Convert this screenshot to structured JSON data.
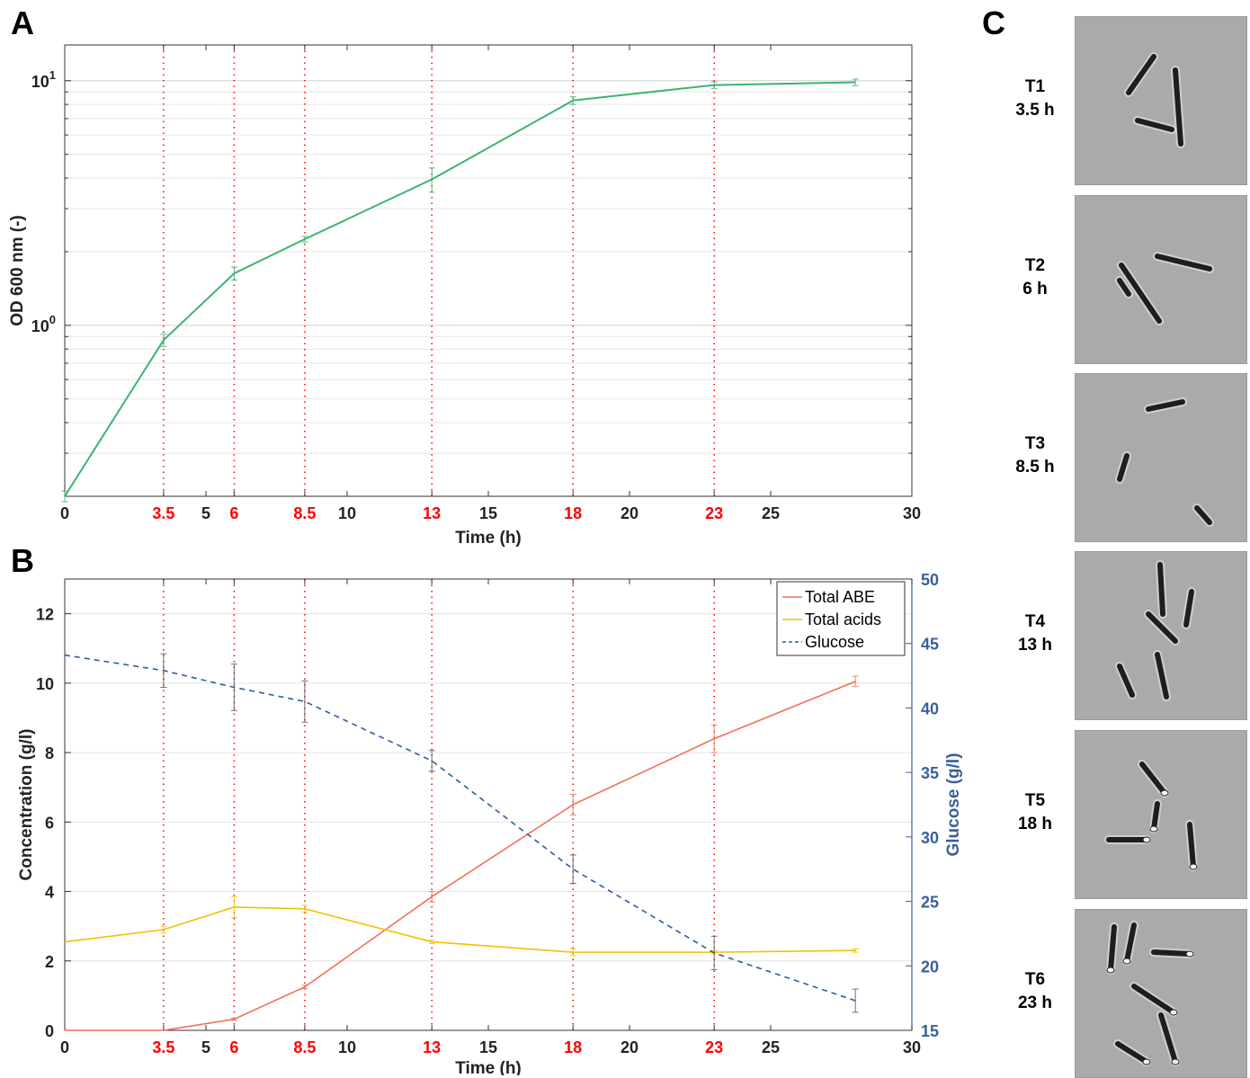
{
  "panels": {
    "a": "A",
    "b": "B",
    "c": "C"
  },
  "colors": {
    "od": "#3cb371",
    "abe": "#f07056",
    "acids": "#f2c000",
    "glucose": "#2e5c9e",
    "glucose_axis": "#3a5f9a",
    "event_lines": "#ff0000",
    "highlight_ticks": "#ff0000"
  },
  "x_ticks": {
    "values": [
      0,
      3.5,
      5,
      6,
      8.5,
      10,
      13,
      15,
      18,
      20,
      23,
      25,
      30
    ],
    "labels": [
      "0",
      "3.5",
      "5",
      "6",
      "8.5",
      "10",
      "13",
      "15",
      "18",
      "20",
      "23",
      "25",
      "30"
    ],
    "highlighted": [
      3.5,
      6,
      8.5,
      13,
      18,
      23
    ]
  },
  "chart_data": [
    {
      "id": "A",
      "type": "line",
      "xlabel": "Time (h)",
      "ylabel": "OD 600 nm (-)",
      "xlim": [
        0,
        30
      ],
      "ylim": [
        0.2,
        14
      ],
      "y_scale": "log",
      "y_ticks": [
        {
          "value": 1,
          "base": "10",
          "exp": "0"
        },
        {
          "value": 10,
          "base": "10",
          "exp": "1"
        }
      ],
      "grid": true,
      "vertical_markers": [
        3.5,
        6,
        8.5,
        13,
        18,
        23
      ],
      "series": [
        {
          "x": [
            0,
            3.5,
            6,
            8.5,
            13,
            18,
            23,
            28
          ],
          "y": [
            0.2,
            0.87,
            1.63,
            2.25,
            3.95,
            8.3,
            9.6,
            9.85
          ],
          "err": [
            0.01,
            0.05,
            0.1,
            0.06,
            0.45,
            0.3,
            0.3,
            0.3
          ],
          "color": "#3cb371"
        }
      ]
    },
    {
      "id": "B",
      "type": "line",
      "xlabel": "Time (h)",
      "ylabel": "Concentration (g/l)",
      "y2label": "Glucose (g/l)",
      "xlim": [
        0,
        30
      ],
      "ylim": [
        0,
        13
      ],
      "y2lim": [
        15,
        50
      ],
      "y_ticks": [
        0,
        2,
        4,
        6,
        8,
        10,
        12
      ],
      "y2_ticks": [
        15,
        20,
        25,
        30,
        35,
        40,
        45,
        50
      ],
      "grid": true,
      "legend_position": "top-right",
      "vertical_markers": [
        3.5,
        6,
        8.5,
        13,
        18,
        23
      ],
      "series": [
        {
          "name": "Total ABE",
          "axis": "left",
          "x": [
            0,
            3.5,
            6,
            8.5,
            13,
            18,
            23,
            28
          ],
          "y": [
            0,
            0,
            0.32,
            1.25,
            3.85,
            6.5,
            8.4,
            10.05
          ],
          "err": [
            0,
            0,
            0.03,
            0.05,
            0.15,
            0.3,
            0.4,
            0.15
          ],
          "color": "#f07056",
          "dash": "solid"
        },
        {
          "name": "Total acids",
          "axis": "left",
          "x": [
            0,
            3.5,
            6,
            8.5,
            13,
            18,
            23,
            28
          ],
          "y": [
            2.55,
            2.9,
            3.55,
            3.5,
            2.55,
            2.25,
            2.25,
            2.3
          ],
          "err": [
            0,
            0.1,
            0.3,
            0.1,
            0.05,
            0.1,
            0.05,
            0.05
          ],
          "color": "#f2c000",
          "dash": "solid"
        },
        {
          "name": "Glucose",
          "axis": "right",
          "x": [
            0,
            3.5,
            6,
            8.5,
            13,
            18,
            23,
            28
          ],
          "y": [
            44.1,
            42.9,
            41.6,
            40.5,
            35.9,
            27.5,
            21.0,
            17.3
          ],
          "err": [
            0,
            1.3,
            1.8,
            1.6,
            0.8,
            1.1,
            1.3,
            0.9
          ],
          "color": "#2e5c9e",
          "dash": "dashed"
        }
      ]
    }
  ],
  "microscopy": [
    {
      "label": "T1",
      "time": "3.5 h",
      "icon": "rod-shaped-cells"
    },
    {
      "label": "T2",
      "time": "6 h",
      "icon": "rod-shaped-cells"
    },
    {
      "label": "T3",
      "time": "8.5 h",
      "icon": "rod-shaped-cells"
    },
    {
      "label": "T4",
      "time": "13 h",
      "icon": "rod-shaped-cells"
    },
    {
      "label": "T5",
      "time": "18 h",
      "icon": "sporulating-cells"
    },
    {
      "label": "T6",
      "time": "23 h",
      "icon": "sporulating-cells"
    }
  ]
}
